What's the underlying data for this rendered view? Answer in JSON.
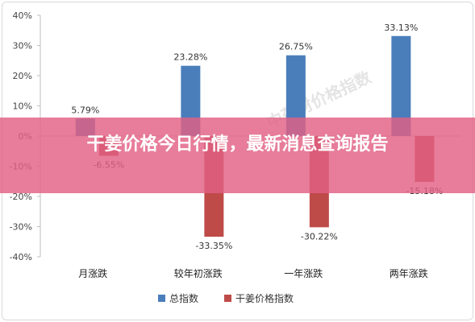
{
  "chart_data": {
    "type": "bar",
    "categories": [
      "月涨跌",
      "较年初涨跌",
      "一年涨跌",
      "两年涨跌"
    ],
    "series": [
      {
        "name": "总指数",
        "values": [
          5.79,
          23.28,
          26.75,
          33.13
        ],
        "labels": [
          "5.79%",
          "23.28%",
          "26.75%",
          "33.13%"
        ],
        "color": "#4a7ebb"
      },
      {
        "name": "干姜价格指数",
        "values": [
          -6.55,
          -33.35,
          -30.22,
          -15.18
        ],
        "labels": [
          "-6.55%",
          "-33.35%",
          "-30.22%",
          "-15.18%"
        ],
        "color": "#be4b48"
      }
    ],
    "yticks": [
      40,
      30,
      20,
      10,
      0,
      -10,
      -20,
      -30,
      -40
    ],
    "ytick_labels": [
      "40%",
      "30%",
      "20%",
      "10%",
      "0%",
      "-10%",
      "-20%",
      "-30%",
      "-40%"
    ],
    "ylim": [
      -40,
      40
    ],
    "grid": false,
    "legend_position": "bottom"
  },
  "banner": {
    "title": "干姜价格今日行情，最新消息查询报告"
  },
  "watermark": {
    "text": "中药材价格指数"
  }
}
